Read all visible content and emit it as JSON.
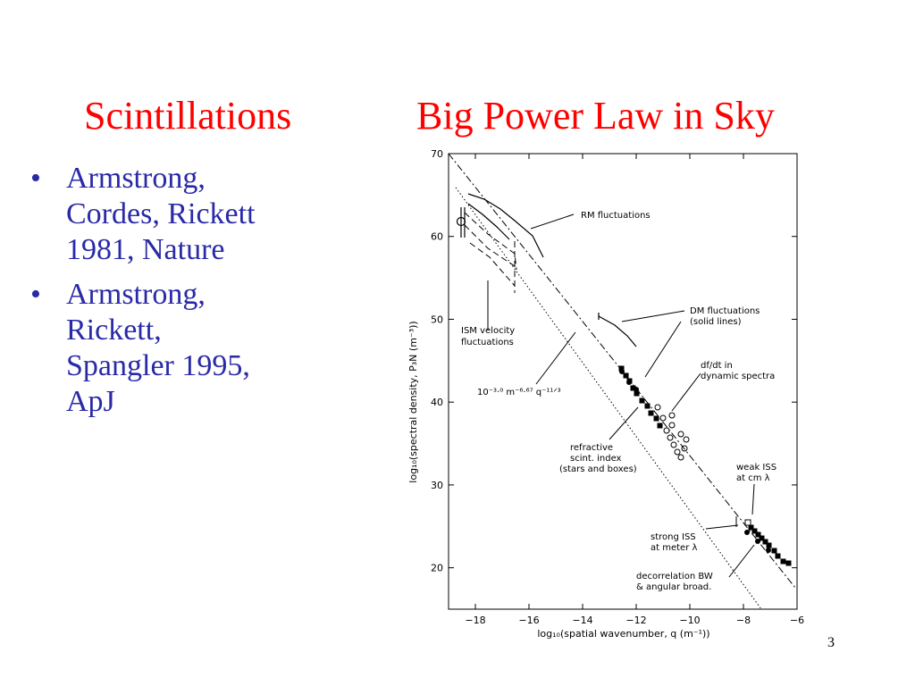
{
  "slide": {
    "title_left": "Scintillations",
    "title_right": "Big Power Law in Sky",
    "page_number": "3",
    "colors": {
      "title": "#ff0000",
      "body": "#2a2aa8"
    }
  },
  "bullets": [
    {
      "lines": [
        "Armstrong,",
        "Cordes, Rickett",
        "1981, Nature"
      ]
    },
    {
      "lines": [
        "Armstrong,",
        "Rickett,",
        "Spangler 1995,",
        "ApJ"
      ]
    }
  ],
  "figure": {
    "ylabel": "log₁₀(spectral density, P₃N (m⁻³))",
    "xlabel": "log₁₀(spatial wavenumber, q (m⁻¹))",
    "x_ticks": [
      "−18",
      "−16",
      "−14",
      "−12",
      "−10",
      "−8",
      "−6"
    ],
    "y_ticks": [
      "20",
      "30",
      "40",
      "50",
      "60",
      "70"
    ],
    "xlim": [
      -19,
      -6
    ],
    "ylim": [
      15,
      70
    ],
    "fit_label": "10⁻³·⁰ m⁻⁶·⁶⁷ q⁻¹¹ᐟ³",
    "annotations": {
      "rm": [
        "RM fluctuations"
      ],
      "dm": [
        "DM fluctuations",
        "(solid lines)"
      ],
      "ism": [
        "ISM velocity",
        "fluctuations"
      ],
      "dfdt": [
        "df/dt in",
        "dynamic spectra"
      ],
      "refr": [
        "refractive",
        "scint. index",
        "(stars and boxes)"
      ],
      "weak": [
        "weak ISS",
        "at cm λ"
      ],
      "strong": [
        "strong ISS",
        "at meter λ"
      ],
      "decor": [
        "decorrelation BW",
        "& angular broad."
      ]
    }
  }
}
